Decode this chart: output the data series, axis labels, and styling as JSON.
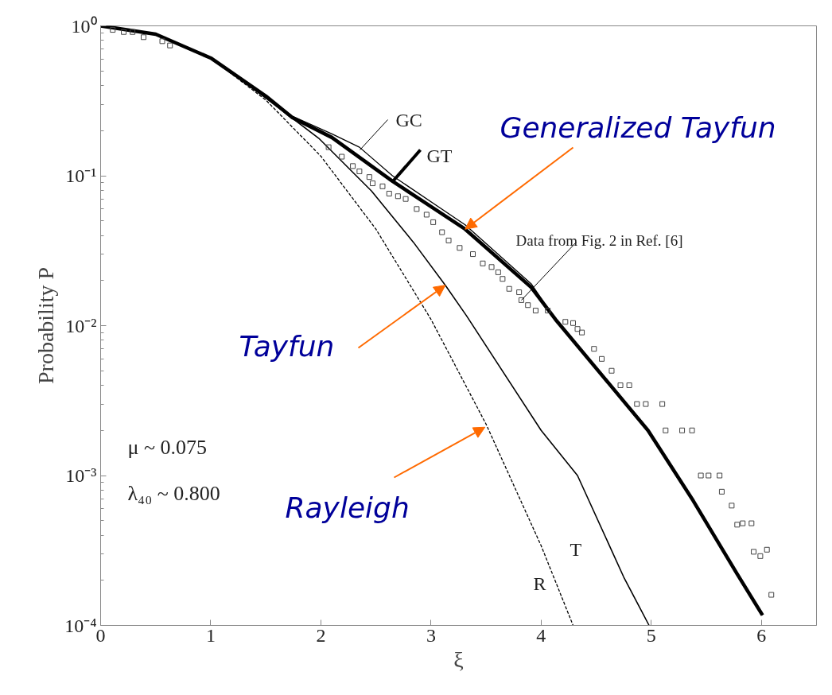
{
  "chart_data": {
    "type": "line",
    "xlabel": "ξ",
    "ylabel": "Probability P",
    "xlim": [
      0,
      6.5
    ],
    "xticks": [
      0,
      1,
      2,
      3,
      4,
      5,
      6
    ],
    "ylim": [
      0.0001,
      1
    ],
    "yticks": [
      {
        "value": 1,
        "label": "10⁰"
      },
      {
        "value": 0.1,
        "label": "10⁻¹"
      },
      {
        "value": 0.01,
        "label": "10⁻²"
      },
      {
        "value": 0.001,
        "label": "10⁻³"
      },
      {
        "value": 0.0001,
        "label": "10⁻⁴"
      }
    ],
    "log": "y",
    "grid": false,
    "series": [
      {
        "name": "GC",
        "color": "#000000",
        "line_style": "solid",
        "x": [
          0,
          0.5,
          1,
          1.5,
          1.74,
          2.1,
          2.35,
          2.65,
          3.31,
          3.91,
          4.13,
          4.97,
          5.38,
          5.78,
          6.01
        ],
        "values": [
          1,
          0.88,
          0.61,
          0.34,
          0.25,
          0.19,
          0.155,
          0.1,
          0.047,
          0.019,
          0.011,
          0.002,
          0.00068,
          0.00022,
          0.000117
        ]
      },
      {
        "name": "GT",
        "color": "#000000",
        "line_style": "solid",
        "x": [
          0,
          0.5,
          1,
          1.5,
          1.74,
          2.1,
          2.65,
          3.31,
          3.91,
          4.13,
          4.97,
          5.38,
          5.78,
          6.01
        ],
        "values": [
          1,
          0.88,
          0.61,
          0.34,
          0.245,
          0.18,
          0.092,
          0.044,
          0.018,
          0.011,
          0.002,
          0.00068,
          0.00022,
          0.000117
        ]
      },
      {
        "name": "T",
        "color": "#000000",
        "line_style": "solid",
        "x": [
          0,
          0.5,
          1,
          1.5,
          1.98,
          2.46,
          2.84,
          3.13,
          3.32,
          4,
          4.33,
          4.75,
          4.98
        ],
        "values": [
          1,
          0.88,
          0.61,
          0.33,
          0.178,
          0.079,
          0.036,
          0.0186,
          0.0117,
          0.002,
          0.001,
          0.00021,
          0.0001
        ]
      },
      {
        "name": "R",
        "color": "#000000",
        "line_style": "dashed",
        "x": [
          0,
          0.5,
          1,
          1.5,
          2,
          2.5,
          3,
          3.5,
          4,
          4.29
        ],
        "values": [
          1,
          0.88,
          0.61,
          0.32,
          0.135,
          0.044,
          0.011,
          0.0022,
          0.00034,
          0.0001
        ]
      },
      {
        "name": "Data from Fig. 2 in Ref. [6]",
        "type": "scatter",
        "marker": "square",
        "color": "#444444",
        "x": [
          0.11,
          0.21,
          0.29,
          0.39,
          0.56,
          0.63,
          2.07,
          2.19,
          2.29,
          2.35,
          2.44,
          2.47,
          2.56,
          2.62,
          2.7,
          2.77,
          2.87,
          2.96,
          3.02,
          3.1,
          3.16,
          3.26,
          3.38,
          3.47,
          3.55,
          3.61,
          3.65,
          3.71,
          3.8,
          3.82,
          3.88,
          3.95,
          4.06,
          4.22,
          4.29,
          4.33,
          4.37,
          4.48,
          4.55,
          4.64,
          4.72,
          4.8,
          4.87,
          4.95,
          5.1,
          5.13,
          5.28,
          5.37,
          5.45,
          5.52,
          5.62,
          5.64,
          5.73,
          5.78,
          5.83,
          5.91,
          5.93,
          5.99,
          6.05,
          6.09
        ],
        "values": [
          0.94,
          0.91,
          0.91,
          0.84,
          0.79,
          0.74,
          0.155,
          0.134,
          0.116,
          0.107,
          0.098,
          0.089,
          0.085,
          0.076,
          0.073,
          0.07,
          0.06,
          0.055,
          0.049,
          0.042,
          0.037,
          0.033,
          0.03,
          0.026,
          0.0246,
          0.0227,
          0.0205,
          0.0176,
          0.0167,
          0.0148,
          0.0137,
          0.0126,
          0.0126,
          0.0106,
          0.0104,
          0.0095,
          0.009,
          0.007,
          0.006,
          0.005,
          0.004,
          0.004,
          0.003,
          0.003,
          0.003,
          0.002,
          0.002,
          0.002,
          0.001,
          0.001,
          0.001,
          0.00078,
          0.00063,
          0.00047,
          0.00048,
          0.00048,
          0.00031,
          0.00029,
          0.00032,
          0.00016
        ]
      }
    ],
    "annotations": [
      {
        "text": "Generalized Tayfun",
        "x": 3.31,
        "y": 0.044
      },
      {
        "text": "Tayfun",
        "x": 3.13,
        "y": 0.0186
      },
      {
        "text": "Rayleigh",
        "x": 3.49,
        "y": 0.0021
      },
      "μ ~ 0.075",
      "λ₄₀ ~ 0.800"
    ]
  }
}
